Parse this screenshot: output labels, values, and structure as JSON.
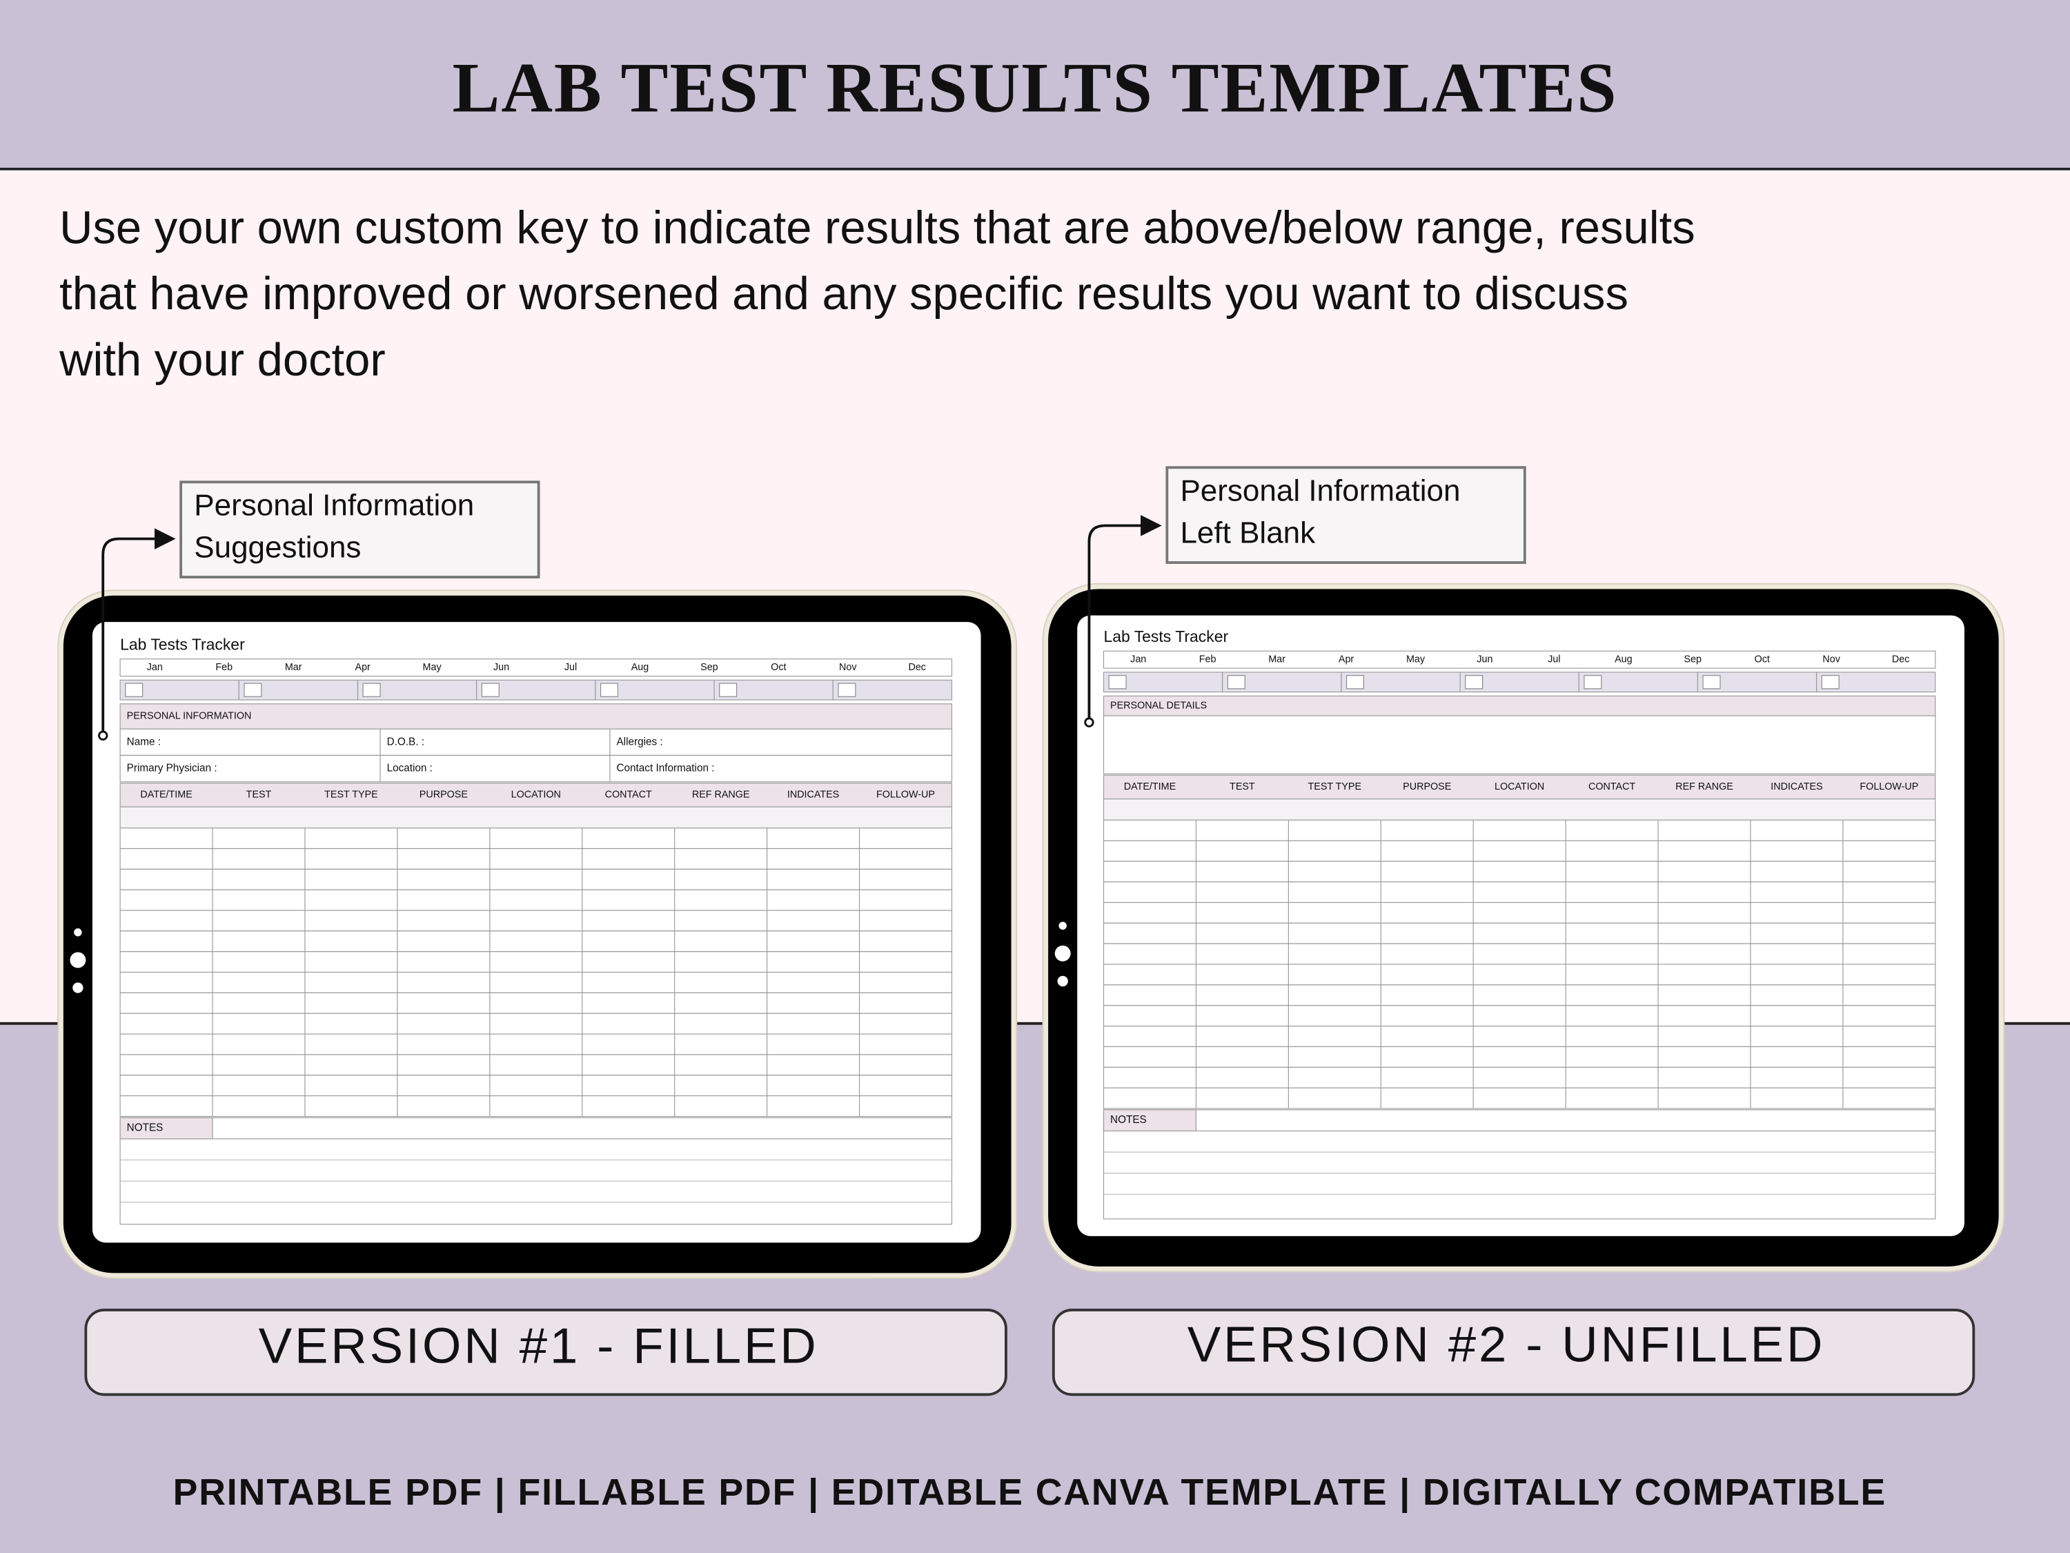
{
  "header": {
    "title": "LAB TEST RESULTS TEMPLATES"
  },
  "description": [
    "Use your own custom key to indicate results that are above/below range, results",
    "that have improved or worsened and any specific results you want to discuss",
    "with your doctor"
  ],
  "tracker": {
    "title": "Lab Tests Tracker",
    "months": [
      "Jan",
      "Feb",
      "Mar",
      "Apr",
      "May",
      "Jun",
      "Jul",
      "Aug",
      "Sep",
      "Oct",
      "Nov",
      "Dec"
    ],
    "columns": [
      "DATE/TIME",
      "TEST",
      "TEST TYPE",
      "PURPOSE",
      "LOCATION",
      "CONTACT",
      "REF RANGE",
      "INDICATES",
      "FOLLOW-UP"
    ],
    "notes": "NOTES"
  },
  "versions": [
    {
      "callout": [
        "Personal Information",
        "Suggestions"
      ],
      "section": "PERSONAL INFORMATION",
      "fields": [
        [
          "Name :",
          "D.O.B. :",
          "Allergies :"
        ],
        [
          "Primary Physician :",
          "Location :",
          "Contact Information :"
        ]
      ],
      "label": "VERSION #1 - FILLED"
    },
    {
      "callout": [
        "Personal Information",
        " Left Blank"
      ],
      "section": "PERSONAL DETAILS",
      "label": "VERSION #2 - UNFILLED"
    }
  ],
  "footer": "PRINTABLE PDF | FILLABLE PDF | EDITABLE CANVA TEMPLATE | DIGITALLY COMPATIBLE"
}
